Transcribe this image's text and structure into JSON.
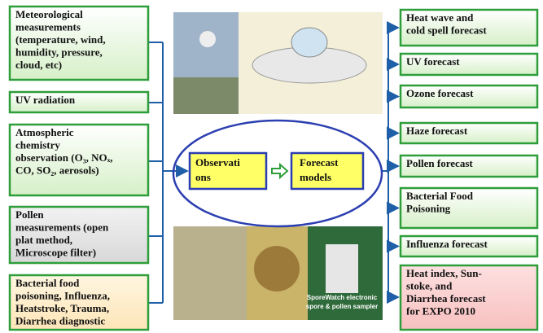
{
  "left_boxes": [
    {
      "lines": [
        "Meteorological",
        "measurements",
        "(temperature, wind,",
        "humidity, pressure,",
        "cloud, etc)"
      ]
    },
    {
      "lines": [
        "UV radiation"
      ]
    },
    {
      "lines": [
        "Atmospheric",
        "chemistry",
        "observation (O₃, NOₓ,",
        "CO, SO₂, aerosols)"
      ]
    },
    {
      "lines": [
        "Pollen",
        "measurements (open",
        "plat method,",
        "Microscope filter)"
      ]
    },
    {
      "lines": [
        "Bacterial food",
        "poisoning, Influenza,",
        "Heatstroke, Trauma,",
        "Diarrhea diagnostic"
      ]
    }
  ],
  "center": {
    "observations": [
      "Observati",
      "ons"
    ],
    "forecast": [
      "Forecast",
      "models"
    ]
  },
  "photo_caption": [
    "SporeWatch electronic",
    "spore & pollen sampler"
  ],
  "right_boxes": [
    {
      "lines": [
        "Heat wave and",
        "cold spell forecast"
      ]
    },
    {
      "lines": [
        "UV forecast"
      ]
    },
    {
      "lines": [
        "Ozone forecast"
      ]
    },
    {
      "lines": [
        "Haze forecast"
      ]
    },
    {
      "lines": [
        "Pollen forecast"
      ]
    },
    {
      "lines": [
        "Bacterial Food",
        "Poisoning"
      ]
    },
    {
      "lines": [
        "Influenza forecast"
      ]
    },
    {
      "lines": [
        "Heat index, Sun-",
        "stoke, and",
        "Diarrhea forecast",
        "for EXPO 2010"
      ]
    }
  ]
}
